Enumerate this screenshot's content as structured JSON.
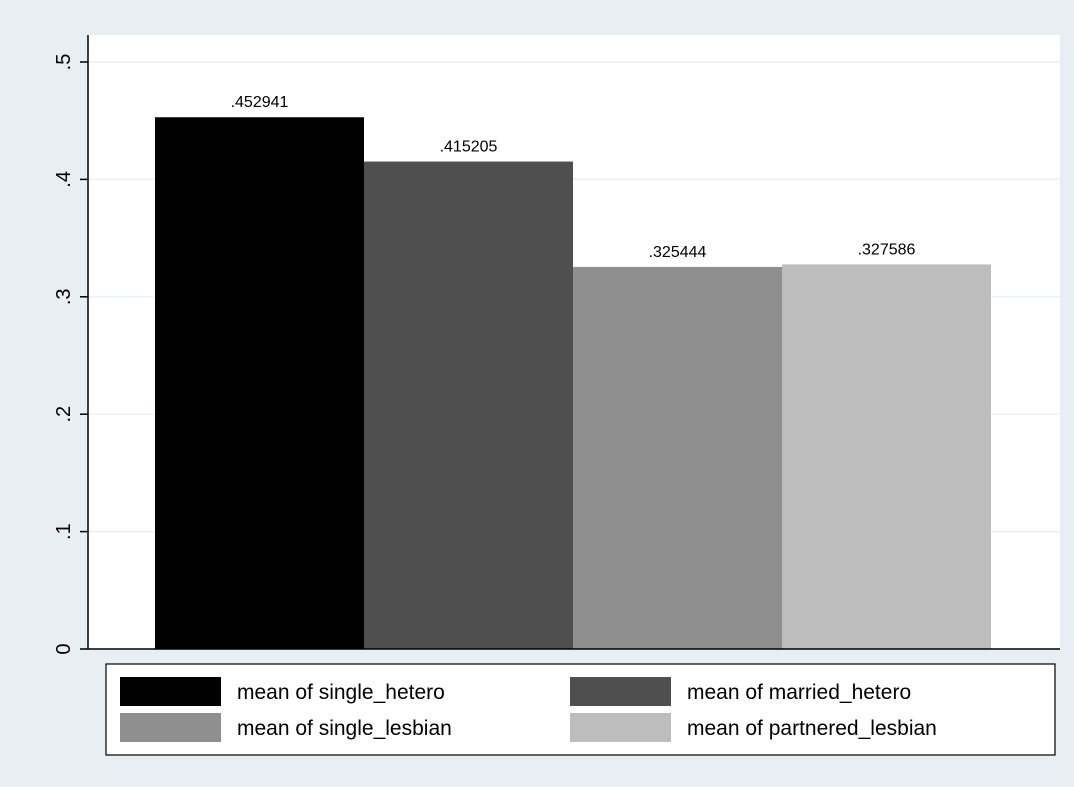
{
  "chart_data": {
    "type": "bar",
    "title": "",
    "xlabel": "",
    "ylabel": "",
    "ylim": [
      0,
      0.5
    ],
    "yticks": [
      {
        "value": 0,
        "label": "0"
      },
      {
        "value": 0.1,
        "label": ".1"
      },
      {
        "value": 0.2,
        "label": ".2"
      },
      {
        "value": 0.3,
        "label": ".3"
      },
      {
        "value": 0.4,
        "label": ".4"
      },
      {
        "value": 0.5,
        "label": ".5"
      }
    ],
    "grid": true,
    "legend_position": "bottom",
    "series": [
      {
        "name": "mean of single_hetero",
        "value": 0.452941,
        "label": ".452941",
        "color": "#000000"
      },
      {
        "name": "mean of married_hetero",
        "value": 0.415205,
        "label": ".415205",
        "color": "#4f4f4f"
      },
      {
        "name": "mean of single_lesbian",
        "value": 0.325444,
        "label": ".325444",
        "color": "#8f8f8f"
      },
      {
        "name": "mean of partnered_lesbian",
        "value": 0.327586,
        "label": ".327586",
        "color": "#bdbdbd"
      }
    ]
  }
}
